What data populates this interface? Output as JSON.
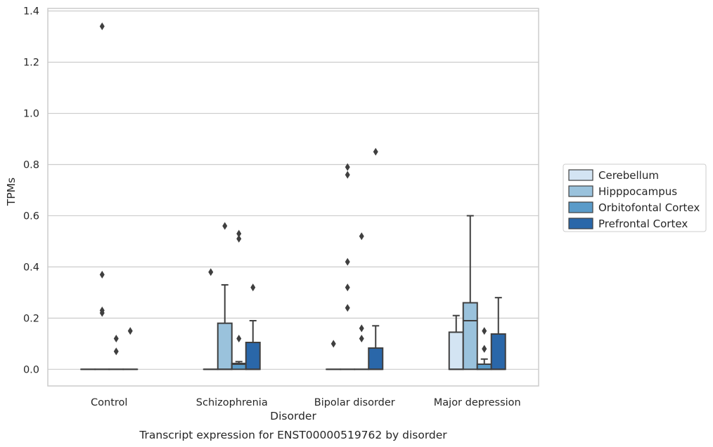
{
  "chart_data": {
    "type": "box",
    "title": "Transcript expression for ENST00000519762 by disorder",
    "xlabel": "Disorder",
    "ylabel": "TPMs",
    "ylim": [
      -0.065,
      1.41
    ],
    "yticks": [
      0.0,
      0.2,
      0.4,
      0.6,
      0.8,
      1.0,
      1.2,
      1.4
    ],
    "ytick_labels": [
      "0.0",
      "0.2",
      "0.4",
      "0.6",
      "0.8",
      "1.0",
      "1.2",
      "1.4"
    ],
    "grid": "horizontal",
    "legend_position": "right",
    "categories": [
      "Control",
      "Schizophrenia",
      "Bipolar disorder",
      "Major depression"
    ],
    "series": [
      {
        "name": "Cerebellum",
        "color": "#d3e4f3",
        "boxes": [
          {
            "q1": 0,
            "median": 0,
            "q3": 0,
            "whislo": 0,
            "whishi": 0,
            "fliers": []
          },
          {
            "q1": 0,
            "median": 0,
            "q3": 0,
            "whislo": 0,
            "whishi": 0,
            "fliers": [
              0.38
            ]
          },
          {
            "q1": 0,
            "median": 0,
            "q3": 0,
            "whislo": 0,
            "whishi": 0,
            "fliers": [
              0.1
            ]
          },
          {
            "q1": 0,
            "median": 0.0,
            "q3": 0.145,
            "whislo": 0,
            "whishi": 0.21,
            "fliers": []
          }
        ]
      },
      {
        "name": "Hipppocampus",
        "color": "#9ac2dc",
        "boxes": [
          {
            "q1": 0,
            "median": 0,
            "q3": 0,
            "whislo": 0,
            "whishi": 0,
            "fliers": [
              1.34,
              0.37,
              0.23,
              0.22
            ]
          },
          {
            "q1": 0,
            "median": 0,
            "q3": 0.18,
            "whislo": 0,
            "whishi": 0.33,
            "fliers": [
              0.56
            ]
          },
          {
            "q1": 0,
            "median": 0,
            "q3": 0,
            "whislo": 0,
            "whishi": 0,
            "fliers": [
              0.79,
              0.76,
              0.42,
              0.32,
              0.24
            ]
          },
          {
            "q1": 0,
            "median": 0.19,
            "q3": 0.26,
            "whislo": 0,
            "whishi": 0.6,
            "fliers": []
          }
        ]
      },
      {
        "name": "Orbitofontal Cortex",
        "color": "#5a9bc9",
        "boxes": [
          {
            "q1": 0,
            "median": 0,
            "q3": 0,
            "whislo": 0,
            "whishi": 0,
            "fliers": [
              0.12,
              0.07
            ]
          },
          {
            "q1": 0,
            "median": 0.02,
            "q3": 0.023,
            "whislo": 0,
            "whishi": 0.03,
            "fliers": [
              0.53,
              0.51,
              0.12
            ]
          },
          {
            "q1": 0,
            "median": 0,
            "q3": 0,
            "whislo": 0,
            "whishi": 0,
            "fliers": [
              0.52,
              0.16,
              0.12
            ]
          },
          {
            "q1": 0,
            "median": 0.0,
            "q3": 0.02,
            "whislo": 0,
            "whishi": 0.04,
            "fliers": [
              0.15,
              0.08,
              0.08
            ]
          }
        ]
      },
      {
        "name": "Prefrontal Cortex",
        "color": "#2a67a9",
        "boxes": [
          {
            "q1": 0,
            "median": 0,
            "q3": 0,
            "whislo": 0,
            "whishi": 0,
            "fliers": [
              0.15
            ]
          },
          {
            "q1": 0,
            "median": 0,
            "q3": 0.105,
            "whislo": 0,
            "whishi": 0.19,
            "fliers": [
              0.32
            ]
          },
          {
            "q1": 0,
            "median": 0,
            "q3": 0.083,
            "whislo": 0,
            "whishi": 0.17,
            "fliers": [
              0.85
            ]
          },
          {
            "q1": 0,
            "median": 0,
            "q3": 0.138,
            "whislo": 0,
            "whishi": 0.28,
            "fliers": []
          }
        ]
      }
    ]
  }
}
